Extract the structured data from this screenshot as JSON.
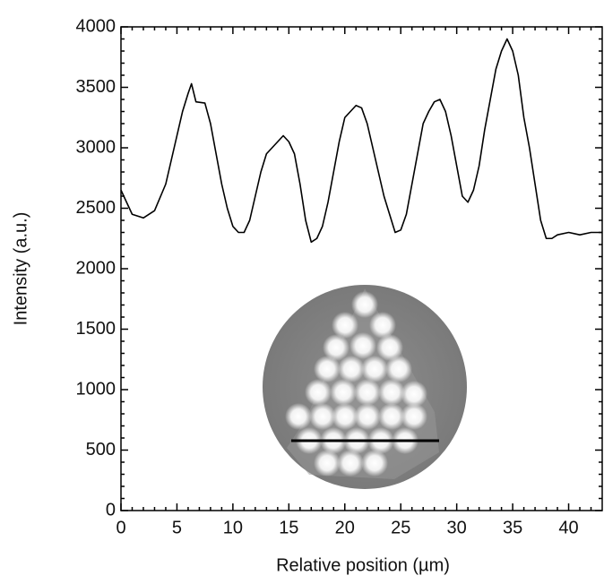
{
  "chart_data": {
    "type": "line",
    "xlabel": "Relative position (µm)",
    "ylabel": "Intensity (a.u.)",
    "x": [
      0,
      0.5,
      1,
      2,
      3,
      4,
      4.5,
      5,
      5.5,
      6,
      6.3,
      6.7,
      7.5,
      8,
      8.5,
      9,
      9.5,
      10,
      10.5,
      11,
      11.5,
      12,
      12.5,
      13,
      14,
      14.5,
      15,
      15.5,
      16,
      16.5,
      17,
      17.5,
      18,
      18.5,
      19,
      19.5,
      20,
      20.5,
      21,
      21.5,
      22,
      22.5,
      23,
      23.5,
      24,
      24.5,
      25,
      25.5,
      26,
      26.5,
      27,
      27.5,
      28,
      28.5,
      29,
      29.5,
      30,
      30.5,
      31,
      31.5,
      32,
      32.5,
      33,
      33.5,
      34,
      34.5,
      35,
      35.5,
      36,
      36.5,
      37,
      37.5,
      38,
      38.5,
      39,
      40,
      41,
      42,
      43
    ],
    "series": [
      {
        "color": "#000000",
        "values": [
          2650,
          2550,
          2450,
          2420,
          2480,
          2700,
          2900,
          3100,
          3300,
          3450,
          3530,
          3380,
          3370,
          3200,
          2950,
          2700,
          2500,
          2350,
          2300,
          2300,
          2400,
          2600,
          2800,
          2950,
          3050,
          3100,
          3050,
          2950,
          2700,
          2400,
          2220,
          2250,
          2350,
          2550,
          2800,
          3050,
          3250,
          3300,
          3350,
          3330,
          3200,
          3000,
          2800,
          2600,
          2450,
          2300,
          2320,
          2450,
          2700,
          2950,
          3200,
          3300,
          3380,
          3400,
          3300,
          3100,
          2850,
          2600,
          2550,
          2650,
          2850,
          3150,
          3400,
          3650,
          3800,
          3900,
          3800,
          3600,
          3250,
          3000,
          2700,
          2400,
          2250,
          2250,
          2280,
          2300,
          2280,
          2300,
          2300
        ]
      }
    ],
    "xlim": [
      0,
      43
    ],
    "xticks": [
      0,
      5,
      10,
      15,
      20,
      25,
      30,
      35,
      40
    ],
    "ylim": [
      0,
      4000
    ],
    "yticks": [
      0,
      500,
      1000,
      1500,
      2000,
      2500,
      3000,
      3500,
      4000
    ]
  }
}
